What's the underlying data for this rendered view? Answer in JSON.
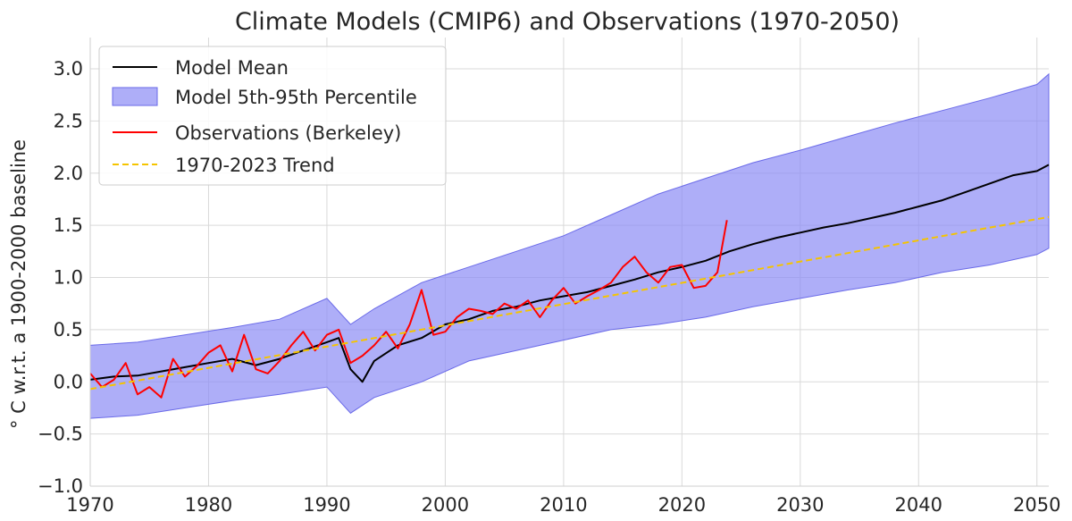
{
  "chart_data": {
    "type": "line",
    "title": "Climate Models (CMIP6) and Observations (1970-2050)",
    "xlabel": "",
    "ylabel": "° C w.r.t. a 1900-2000 baseline",
    "xlim": [
      1970,
      2051
    ],
    "ylim": [
      -1.0,
      3.3
    ],
    "grid": true,
    "legend_position": "top-left",
    "x_ticks": [
      1970,
      1980,
      1990,
      2000,
      2010,
      2020,
      2030,
      2040,
      2050
    ],
    "x_tick_labels": [
      "1970",
      "1980",
      "1990",
      "2000",
      "2010",
      "2020",
      "2030",
      "2040",
      "2050"
    ],
    "y_ticks": [
      -1.0,
      -0.5,
      0.0,
      0.5,
      1.0,
      1.5,
      2.0,
      2.5,
      3.0
    ],
    "y_tick_labels": [
      "−1.0",
      "−0.5",
      "0.0",
      "0.5",
      "1.0",
      "1.5",
      "2.0",
      "2.5",
      "3.0"
    ],
    "colors": {
      "mean": "#000000",
      "band_fill": "#8c8cf5",
      "band_edge": "#6a6ae8",
      "obs": "#ff0000",
      "trend": "#f5c400",
      "grid": "#d9d9d9"
    },
    "series": [
      {
        "name": "Model Mean",
        "style": "solid",
        "x": [
          1970,
          1972,
          1974,
          1976,
          1978,
          1980,
          1982,
          1984,
          1986,
          1988,
          1990,
          1991,
          1992,
          1993,
          1994,
          1996,
          1998,
          2000,
          2002,
          2004,
          2006,
          2008,
          2010,
          2012,
          2014,
          2016,
          2018,
          2020,
          2022,
          2024,
          2026,
          2028,
          2030,
          2032,
          2034,
          2036,
          2038,
          2040,
          2042,
          2044,
          2046,
          2048,
          2050,
          2051
        ],
        "y": [
          0.02,
          0.05,
          0.06,
          0.1,
          0.14,
          0.18,
          0.22,
          0.16,
          0.22,
          0.3,
          0.38,
          0.42,
          0.12,
          0.0,
          0.2,
          0.35,
          0.42,
          0.55,
          0.6,
          0.68,
          0.72,
          0.78,
          0.82,
          0.86,
          0.92,
          0.98,
          1.05,
          1.1,
          1.16,
          1.25,
          1.32,
          1.38,
          1.43,
          1.48,
          1.52,
          1.57,
          1.62,
          1.68,
          1.74,
          1.82,
          1.9,
          1.98,
          2.02,
          2.08
        ]
      },
      {
        "name": "Model 5th-95th Percentile",
        "style": "band",
        "x": [
          1970,
          1974,
          1978,
          1982,
          1986,
          1990,
          1992,
          1994,
          1998,
          2002,
          2006,
          2010,
          2014,
          2018,
          2022,
          2026,
          2030,
          2034,
          2038,
          2042,
          2046,
          2050,
          2051
        ],
        "lower": [
          -0.35,
          -0.32,
          -0.25,
          -0.18,
          -0.12,
          -0.05,
          -0.3,
          -0.15,
          0.0,
          0.2,
          0.3,
          0.4,
          0.5,
          0.55,
          0.62,
          0.72,
          0.8,
          0.88,
          0.95,
          1.05,
          1.12,
          1.22,
          1.28
        ],
        "upper": [
          0.35,
          0.38,
          0.45,
          0.52,
          0.6,
          0.8,
          0.55,
          0.7,
          0.95,
          1.1,
          1.25,
          1.4,
          1.6,
          1.8,
          1.95,
          2.1,
          2.22,
          2.35,
          2.48,
          2.6,
          2.72,
          2.85,
          2.95
        ]
      },
      {
        "name": "Observations (Berkeley)",
        "style": "solid",
        "x": [
          1970,
          1971,
          1972,
          1973,
          1974,
          1975,
          1976,
          1977,
          1978,
          1979,
          1980,
          1981,
          1982,
          1983,
          1984,
          1985,
          1986,
          1987,
          1988,
          1989,
          1990,
          1991,
          1992,
          1993,
          1994,
          1995,
          1996,
          1997,
          1998,
          1999,
          2000,
          2001,
          2002,
          2003,
          2004,
          2005,
          2006,
          2007,
          2008,
          2009,
          2010,
          2011,
          2012,
          2013,
          2014,
          2015,
          2016,
          2017,
          2018,
          2019,
          2020,
          2021,
          2022,
          2023,
          2023.8
        ],
        "y": [
          0.08,
          -0.05,
          0.02,
          0.18,
          -0.12,
          -0.05,
          -0.15,
          0.22,
          0.05,
          0.15,
          0.28,
          0.35,
          0.1,
          0.45,
          0.12,
          0.08,
          0.2,
          0.35,
          0.48,
          0.3,
          0.45,
          0.5,
          0.18,
          0.25,
          0.35,
          0.48,
          0.32,
          0.55,
          0.88,
          0.45,
          0.48,
          0.62,
          0.7,
          0.68,
          0.65,
          0.75,
          0.7,
          0.78,
          0.62,
          0.78,
          0.9,
          0.75,
          0.82,
          0.88,
          0.95,
          1.1,
          1.2,
          1.05,
          0.95,
          1.1,
          1.12,
          0.9,
          0.92,
          1.05,
          1.55
        ]
      },
      {
        "name": "1970-2023 Trend",
        "style": "dashed",
        "x": [
          1970,
          2051
        ],
        "y": [
          -0.07,
          1.58
        ]
      }
    ]
  }
}
